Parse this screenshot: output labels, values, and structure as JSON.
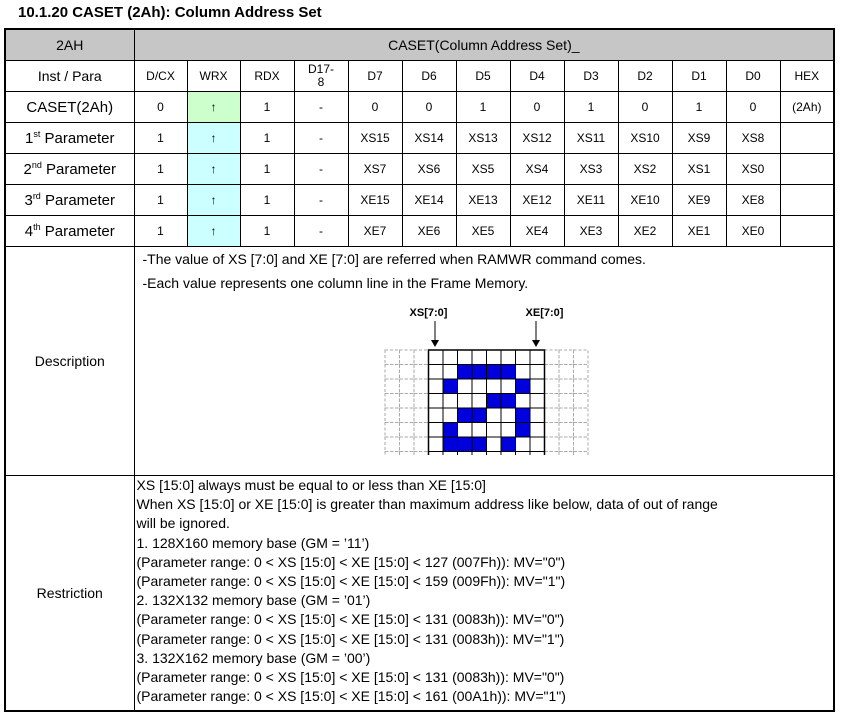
{
  "title": "10.1.20 CASET (2Ah): Column Address Set",
  "header": {
    "code": "2AH",
    "name": "CASET(Column Address Set)_"
  },
  "columns": [
    "Inst / Para",
    "D/CX",
    "WRX",
    "RDX",
    "D17-8",
    "D7",
    "D6",
    "D5",
    "D4",
    "D3",
    "D2",
    "D1",
    "D0",
    "HEX"
  ],
  "rows": [
    {
      "label": "CASET(2Ah)",
      "sup": "",
      "label_rest": "",
      "dcx": "0",
      "wrx": "↑",
      "rdx": "1",
      "d178": "-",
      "bits": [
        "0",
        "0",
        "1",
        "0",
        "1",
        "0",
        "1",
        "0"
      ],
      "hex": "(2Ah)"
    },
    {
      "label": "1",
      "sup": "st",
      "label_rest": " Parameter",
      "dcx": "1",
      "wrx": "↑",
      "rdx": "1",
      "d178": "-",
      "bits": [
        "XS15",
        "XS14",
        "XS13",
        "XS12",
        "XS11",
        "XS10",
        "XS9",
        "XS8"
      ],
      "hex": ""
    },
    {
      "label": "2",
      "sup": "nd",
      "label_rest": " Parameter",
      "dcx": "1",
      "wrx": "↑",
      "rdx": "1",
      "d178": "-",
      "bits": [
        "XS7",
        "XS6",
        "XS5",
        "XS4",
        "XS3",
        "XS2",
        "XS1",
        "XS0"
      ],
      "hex": ""
    },
    {
      "label": "3",
      "sup": "rd",
      "label_rest": " Parameter",
      "dcx": "1",
      "wrx": "↑",
      "rdx": "1",
      "d178": "-",
      "bits": [
        "XE15",
        "XE14",
        "XE13",
        "XE12",
        "XE11",
        "XE10",
        "XE9",
        "XE8"
      ],
      "hex": ""
    },
    {
      "label": "4",
      "sup": "th",
      "label_rest": " Parameter",
      "dcx": "1",
      "wrx": "↑",
      "rdx": "1",
      "d178": "-",
      "bits": [
        "XE7",
        "XE6",
        "XE5",
        "XE4",
        "XE3",
        "XE2",
        "XE1",
        "XE0"
      ],
      "hex": ""
    }
  ],
  "description": {
    "label": "Description",
    "lines": [
      "-The value of XS [7:0] and XE [7:0] are referred when RAMWR command comes.",
      "-Each value represents one column line in the Frame Memory."
    ],
    "diagram": {
      "xs_label": "XS[7:0]",
      "xe_label": "XE[7:0]"
    }
  },
  "restriction": {
    "label": "Restriction",
    "lines": [
      "XS [15:0] always must be equal to or less than XE [15:0]",
      "When XS [15:0] or XE [15:0] is greater than maximum address like below, data of out of range",
      "will be ignored.",
      "1. 128X160 memory base (GM = ’11’)",
      "(Parameter range: 0 < XS [15:0] < XE [15:0] < 127 (007Fh)): MV=\"0\")",
      "(Parameter range: 0 < XS [15:0] < XE [15:0] < 159 (009Fh)): MV=\"1\")",
      "2. 132X132 memory base (GM = ’01’)",
      "(Parameter range: 0 < XS [15:0] < XE [15:0] < 131 (0083h)): MV=\"0\")",
      "(Parameter range: 0 < XS [15:0] < XE [15:0] < 131 (0083h)): MV=\"1\")",
      "3. 132X162 memory base (GM = ’00’)",
      "(Parameter range: 0 < XS [15:0] < XE [15:0] < 131 (0083h)): MV=\"0\")",
      "(Parameter range: 0 < XS [15:0] < XE [15:0] < 161 (00A1h)): MV=\"1\")"
    ]
  },
  "colors": {
    "header_bg": "#c6c6c6",
    "wrx_green": "#ccffcc",
    "wrx_cyan": "#ccffff",
    "pixel_fill": "#0000dd"
  }
}
